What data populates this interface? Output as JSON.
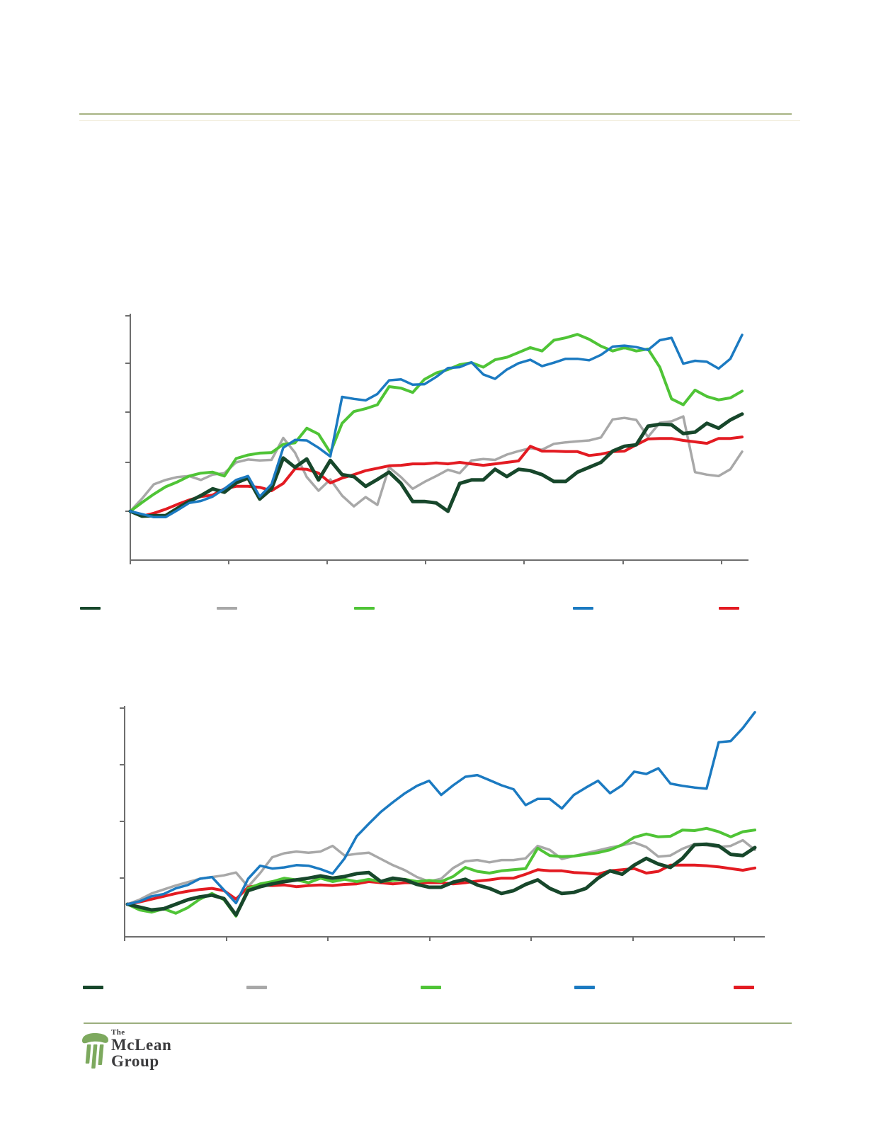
{
  "page": {
    "background": "#ffffff",
    "visible_text_note": "No titles, axis labels, tick labels or legend labels are rendered in the source image; only chart graphics, legend color keys, rules and the footer logo are visible."
  },
  "header": {
    "rule_color": "#a6b383",
    "rule_faint_color": "#f0ebd7"
  },
  "footer": {
    "rule_color": "#9cae7e",
    "logo": {
      "the": "The",
      "mclean": "McLean",
      "group": "Group",
      "icon": "column-pillar-icon",
      "icon_color": "#7da95e",
      "text_color": "#3b3b3d"
    }
  },
  "colors": {
    "axis": "#6e6e6e",
    "dark_green": "#17472b",
    "gray": "#a8a8a8",
    "bright_green": "#4fc436",
    "blue": "#1b7ac1",
    "red": "#e31b22"
  },
  "chart_data": [
    {
      "id": "chart-1",
      "type": "line",
      "title": "",
      "x_axis": {
        "tick_count": 7,
        "labels_visible": false
      },
      "y_axis": {
        "tick_count": 5,
        "labels_visible": false,
        "unit": "1.0 = one y-gridline interval above the common starting value of all series"
      },
      "legend_labels_visible": false,
      "series": [
        {
          "name": "dark-green",
          "color": "#17472b",
          "values": [
            0.0,
            -0.1,
            -0.09,
            -0.09,
            0.06,
            0.2,
            0.32,
            0.46,
            0.39,
            0.58,
            0.68,
            0.25,
            0.46,
            1.09,
            0.9,
            1.07,
            0.64,
            1.04,
            0.75,
            0.71,
            0.51,
            0.65,
            0.8,
            0.57,
            0.2,
            0.2,
            0.17,
            0.0,
            0.57,
            0.64,
            0.64,
            0.86,
            0.71,
            0.86,
            0.83,
            0.75,
            0.61,
            0.61,
            0.8,
            0.9,
            1.0,
            1.23,
            1.33,
            1.36,
            1.74,
            1.78,
            1.77,
            1.59,
            1.62,
            1.8,
            1.7,
            1.87,
            1.99
          ]
        },
        {
          "name": "gray",
          "color": "#a8a8a8",
          "values": [
            0.0,
            0.26,
            0.55,
            0.64,
            0.7,
            0.72,
            0.64,
            0.75,
            0.78,
            1.0,
            1.06,
            1.04,
            1.05,
            1.5,
            1.2,
            0.7,
            0.42,
            0.65,
            0.32,
            0.1,
            0.29,
            0.13,
            0.9,
            0.7,
            0.46,
            0.6,
            0.72,
            0.85,
            0.78,
            1.04,
            1.07,
            1.05,
            1.16,
            1.23,
            1.29,
            1.26,
            1.38,
            1.41,
            1.43,
            1.45,
            1.51,
            1.88,
            1.91,
            1.87,
            1.52,
            1.81,
            1.84,
            1.94,
            0.8,
            0.75,
            0.72,
            0.86,
            1.22
          ]
        },
        {
          "name": "bright-green",
          "color": "#4fc436",
          "values": [
            0.0,
            0.18,
            0.35,
            0.5,
            0.6,
            0.72,
            0.78,
            0.8,
            0.72,
            1.08,
            1.15,
            1.19,
            1.2,
            1.37,
            1.4,
            1.7,
            1.58,
            1.2,
            1.8,
            2.04,
            2.1,
            2.18,
            2.55,
            2.52,
            2.43,
            2.7,
            2.83,
            2.9,
            3.0,
            3.04,
            2.95,
            3.1,
            3.15,
            3.25,
            3.35,
            3.28,
            3.5,
            3.55,
            3.62,
            3.52,
            3.38,
            3.28,
            3.35,
            3.28,
            3.32,
            2.95,
            2.3,
            2.18,
            2.48,
            2.35,
            2.28,
            2.32,
            2.46
          ]
        },
        {
          "name": "blue",
          "color": "#1b7ac1",
          "values": [
            0.0,
            -0.06,
            -0.12,
            -0.12,
            0.02,
            0.17,
            0.21,
            0.3,
            0.46,
            0.64,
            0.72,
            0.3,
            0.55,
            1.3,
            1.46,
            1.45,
            1.3,
            1.12,
            2.34,
            2.3,
            2.27,
            2.4,
            2.68,
            2.7,
            2.59,
            2.6,
            2.75,
            2.93,
            2.95,
            3.05,
            2.8,
            2.71,
            2.9,
            3.03,
            3.1,
            2.97,
            3.04,
            3.12,
            3.12,
            3.09,
            3.2,
            3.37,
            3.39,
            3.36,
            3.3,
            3.5,
            3.55,
            3.02,
            3.08,
            3.06,
            2.92,
            3.12,
            3.61
          ]
        },
        {
          "name": "red",
          "color": "#e31b22",
          "values": [
            0.0,
            -0.1,
            -0.04,
            0.04,
            0.14,
            0.23,
            0.3,
            0.33,
            0.46,
            0.51,
            0.51,
            0.49,
            0.42,
            0.57,
            0.87,
            0.86,
            0.78,
            0.58,
            0.68,
            0.75,
            0.83,
            0.88,
            0.93,
            0.94,
            0.97,
            0.97,
            0.99,
            0.97,
            1.0,
            0.97,
            0.94,
            0.97,
            1.0,
            1.03,
            1.33,
            1.23,
            1.23,
            1.22,
            1.22,
            1.14,
            1.17,
            1.22,
            1.23,
            1.36,
            1.48,
            1.49,
            1.49,
            1.45,
            1.42,
            1.39,
            1.49,
            1.49,
            1.52
          ]
        }
      ]
    },
    {
      "id": "chart-2",
      "type": "line",
      "title": "",
      "x_axis": {
        "tick_count": 7,
        "labels_visible": false
      },
      "y_axis": {
        "tick_count": 4,
        "labels_visible": false,
        "unit": "1.0 = one y-gridline interval above the common starting value of all series"
      },
      "legend_labels_visible": false,
      "series": [
        {
          "name": "dark-green",
          "color": "#17472b",
          "values": [
            0.0,
            -0.05,
            -0.1,
            -0.08,
            0.0,
            0.08,
            0.13,
            0.16,
            0.1,
            -0.19,
            0.24,
            0.31,
            0.36,
            0.4,
            0.43,
            0.46,
            0.5,
            0.46,
            0.49,
            0.54,
            0.56,
            0.4,
            0.46,
            0.43,
            0.35,
            0.3,
            0.3,
            0.39,
            0.44,
            0.34,
            0.28,
            0.19,
            0.24,
            0.35,
            0.43,
            0.28,
            0.19,
            0.21,
            0.28,
            0.46,
            0.59,
            0.53,
            0.69,
            0.81,
            0.71,
            0.65,
            0.81,
            1.05,
            1.06,
            1.03,
            0.88,
            0.86,
            1.0
          ]
        },
        {
          "name": "gray",
          "color": "#a8a8a8",
          "values": [
            0.0,
            0.08,
            0.19,
            0.26,
            0.33,
            0.39,
            0.45,
            0.48,
            0.51,
            0.56,
            0.31,
            0.55,
            0.83,
            0.9,
            0.93,
            0.91,
            0.93,
            1.03,
            0.86,
            0.89,
            0.91,
            0.8,
            0.69,
            0.6,
            0.48,
            0.4,
            0.45,
            0.64,
            0.76,
            0.78,
            0.74,
            0.78,
            0.78,
            0.81,
            1.03,
            0.96,
            0.8,
            0.85,
            0.9,
            0.95,
            1.0,
            1.04,
            1.09,
            1.01,
            0.84,
            0.86,
            0.98,
            1.06,
            1.04,
            1.01,
            1.03,
            1.13,
            0.96
          ]
        },
        {
          "name": "bright-green",
          "color": "#4fc436",
          "values": [
            0.0,
            -0.1,
            -0.14,
            -0.08,
            -0.16,
            -0.06,
            0.09,
            0.19,
            0.08,
            -0.21,
            0.28,
            0.36,
            0.4,
            0.46,
            0.43,
            0.38,
            0.46,
            0.4,
            0.44,
            0.4,
            0.44,
            0.4,
            0.42,
            0.44,
            0.4,
            0.42,
            0.4,
            0.49,
            0.65,
            0.58,
            0.55,
            0.59,
            0.61,
            0.63,
            0.99,
            0.86,
            0.84,
            0.85,
            0.88,
            0.91,
            0.96,
            1.05,
            1.18,
            1.24,
            1.19,
            1.2,
            1.31,
            1.3,
            1.34,
            1.28,
            1.19,
            1.28,
            1.31
          ]
        },
        {
          "name": "blue",
          "color": "#1b7ac1",
          "values": [
            0.0,
            0.05,
            0.14,
            0.18,
            0.28,
            0.34,
            0.45,
            0.48,
            0.25,
            0.02,
            0.45,
            0.68,
            0.63,
            0.65,
            0.69,
            0.68,
            0.62,
            0.54,
            0.81,
            1.2,
            1.42,
            1.63,
            1.8,
            1.96,
            2.09,
            2.18,
            1.93,
            2.1,
            2.25,
            2.28,
            2.19,
            2.1,
            2.03,
            1.75,
            1.86,
            1.86,
            1.69,
            1.93,
            2.06,
            2.18,
            1.96,
            2.1,
            2.34,
            2.3,
            2.4,
            2.13,
            2.09,
            2.06,
            2.04,
            2.86,
            2.88,
            3.11,
            3.39
          ]
        },
        {
          "name": "red",
          "color": "#e31b22",
          "values": [
            0.0,
            0.04,
            0.09,
            0.14,
            0.19,
            0.23,
            0.26,
            0.28,
            0.24,
            0.09,
            0.3,
            0.34,
            0.33,
            0.34,
            0.31,
            0.33,
            0.34,
            0.33,
            0.35,
            0.36,
            0.4,
            0.38,
            0.36,
            0.38,
            0.38,
            0.38,
            0.38,
            0.36,
            0.38,
            0.41,
            0.43,
            0.46,
            0.46,
            0.53,
            0.61,
            0.59,
            0.59,
            0.56,
            0.55,
            0.53,
            0.59,
            0.61,
            0.63,
            0.55,
            0.58,
            0.69,
            0.69,
            0.69,
            0.68,
            0.66,
            0.63,
            0.6,
            0.64
          ]
        }
      ]
    }
  ]
}
